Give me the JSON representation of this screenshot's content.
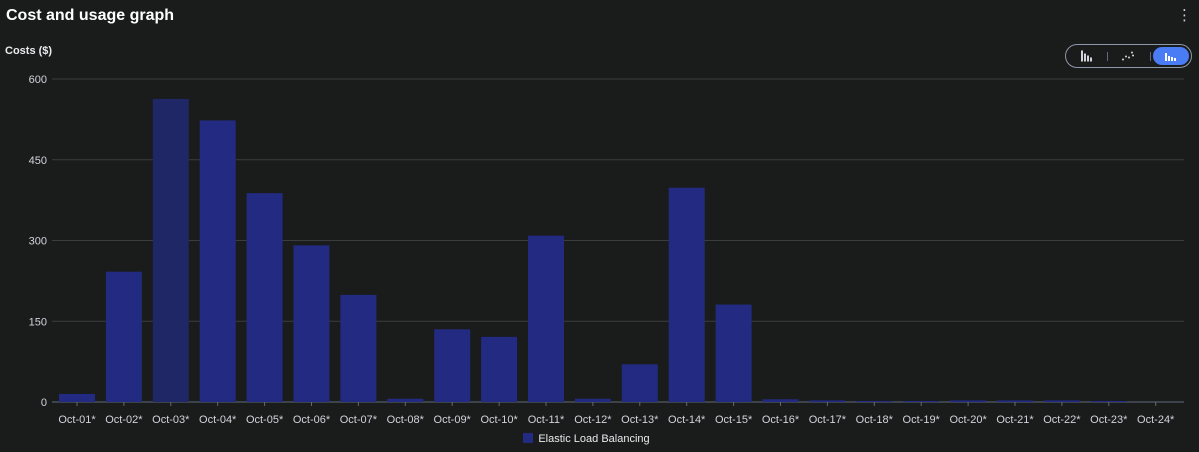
{
  "header": {
    "title": "Cost and usage graph",
    "menu_icon": "⋮"
  },
  "toggle": {
    "options": [
      "bar-chart-icon",
      "line-chart-icon",
      "stacked-bar-chart-icon"
    ],
    "active": 2
  },
  "colors": {
    "bar": "#222b81",
    "bar_highlight": "#1f2766",
    "grid": "#3a3d40",
    "accent": "#4a7df5"
  },
  "chart_data": {
    "type": "bar",
    "ylabel": "Costs ($)",
    "xlabel": "",
    "ylim": [
      0,
      600
    ],
    "yticks": [
      0,
      150,
      300,
      450,
      600
    ],
    "grid": true,
    "legend_position": "bottom",
    "categories": [
      "Oct-01*",
      "Oct-02*",
      "Oct-03*",
      "Oct-04*",
      "Oct-05*",
      "Oct-06*",
      "Oct-07*",
      "Oct-08*",
      "Oct-09*",
      "Oct-10*",
      "Oct-11*",
      "Oct-12*",
      "Oct-13*",
      "Oct-14*",
      "Oct-15*",
      "Oct-16*",
      "Oct-17*",
      "Oct-18*",
      "Oct-19*",
      "Oct-20*",
      "Oct-21*",
      "Oct-22*",
      "Oct-23*",
      "Oct-24*"
    ],
    "series": [
      {
        "name": "Elastic Load Balancing",
        "values": [
          15,
          242,
          563,
          523,
          388,
          291,
          199,
          6,
          135,
          121,
          309,
          6,
          70,
          398,
          181,
          5,
          3,
          2,
          2,
          3,
          3,
          3,
          2,
          0
        ]
      }
    ],
    "highlighted_index": 2
  }
}
